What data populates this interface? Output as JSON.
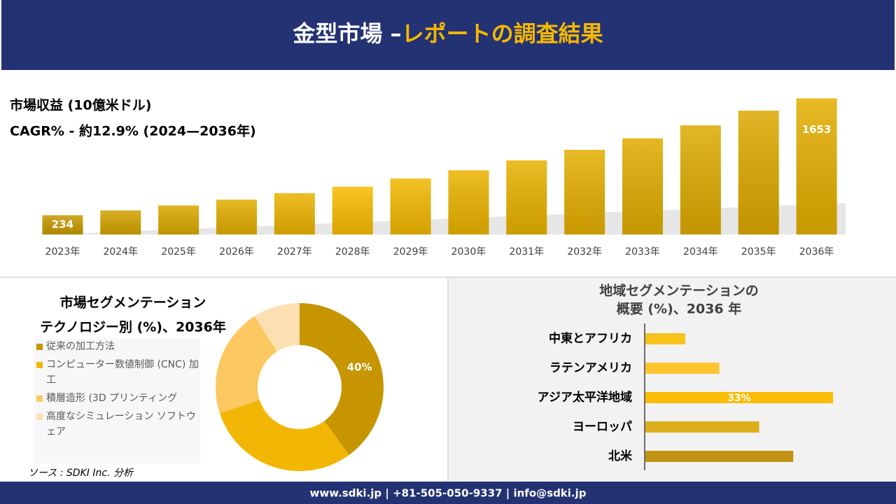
{
  "header": {
    "title_parts": [
      "金型市場 –",
      "レポートの調査結果"
    ]
  },
  "source": "ソース : SDKI Inc. 分析",
  "footer": "www.sdki.jp | +81-505-050-9337 | info@sdki.jp",
  "chart_data": [
    {
      "type": "bar",
      "title": "市場収益 (10億米ドル)",
      "subtitle": "CAGR% - 約12.9% (2024—2036年)",
      "categories": [
        "2023年",
        "2024年",
        "2025年",
        "2026年",
        "2027年",
        "2028年",
        "2029年",
        "2030年",
        "2031年",
        "2032年",
        "2033年",
        "2034年",
        "2035年",
        "2036年"
      ],
      "values": [
        234,
        293,
        353,
        423,
        502,
        581,
        680,
        780,
        899,
        1028,
        1167,
        1325,
        1504,
        1653
      ],
      "value_labels": [
        "234",
        null,
        null,
        null,
        null,
        null,
        null,
        null,
        null,
        null,
        null,
        null,
        null,
        "1653"
      ],
      "colors": [
        "#c79a00",
        "#d3a300",
        "#d9a900",
        "#e2ae00",
        "#ebb300",
        "#f7bc00",
        "#f1b800",
        "#eab300",
        "#e8b200",
        "#e4ae00",
        "#e0ab00",
        "#ddaa00",
        "#dca800",
        "#e3ae00"
      ],
      "ylim": [
        0,
        1700
      ]
    },
    {
      "type": "donut",
      "title": "市場セグメンテーション",
      "subtitle": "テクノロジー別 (%)、2036年",
      "categories": [
        "従来の加工方法",
        "コンピューター数値制御 (CNC) 加工",
        "積層造形 (3D プリンティング",
        "高度なシミュレーション ソフトウェア"
      ],
      "values": [
        40,
        30,
        21,
        9
      ],
      "value_labels": [
        "40%",
        null,
        null,
        null
      ],
      "colors": [
        "#c69500",
        "#f2b705",
        "#fcc862",
        "#fde0b2"
      ]
    },
    {
      "type": "hbar",
      "title": "地域セグメンテーションの",
      "subtitle": "概要 (%)、2036 年",
      "categories": [
        "中東とアフリカ",
        "ラテンアメリカ",
        "アジア太平洋地域",
        "ヨーロッパ",
        "北米"
      ],
      "values": [
        7,
        13,
        33,
        20,
        26
      ],
      "value_labels": [
        null,
        null,
        "33%",
        null,
        null
      ],
      "colors": [
        "#f7c21b",
        "#fcc52e",
        "#fbbc05",
        "#ddae1a",
        "#c39414"
      ],
      "xlim": [
        0,
        40
      ]
    }
  ]
}
